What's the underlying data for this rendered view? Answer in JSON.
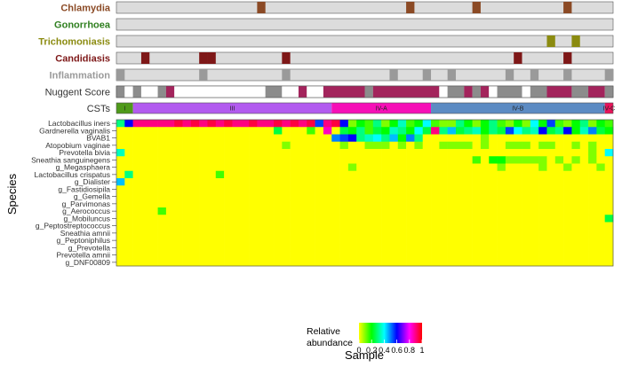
{
  "chart_data": {
    "type": "heatmap",
    "xlabel": "Sample",
    "ylabel": "Species",
    "n_samples": 60,
    "annotation_tracks": [
      {
        "name": "Chlamydia",
        "color": "#8B4A25",
        "positive": [
          17,
          35,
          43,
          54
        ]
      },
      {
        "name": "Gonorrhoea",
        "color": "#2F7F1F",
        "positive": []
      },
      {
        "name": "Trichomoniasis",
        "color": "#8B8B10",
        "positive": [
          52,
          55
        ]
      },
      {
        "name": "Candidiasis",
        "color": "#7E1818",
        "positive": [
          3,
          10,
          11,
          20,
          48,
          54
        ]
      },
      {
        "name": "Inflammation",
        "color": "#9A9A9A",
        "positive": [
          0,
          10,
          20,
          33,
          37,
          40,
          47,
          50,
          54,
          59
        ]
      },
      {
        "name": "Nuggent Score",
        "color": "#333333"
      }
    ],
    "nugent_colors": {
      "normal": "#FFFFFF",
      "intermediate": "#8C8C8C",
      "bv": "#A3245C"
    },
    "nugent_segments": [
      {
        "start": 0,
        "end": 1,
        "category": "intermediate"
      },
      {
        "start": 1,
        "end": 2,
        "category": "normal"
      },
      {
        "start": 2,
        "end": 3,
        "category": "intermediate"
      },
      {
        "start": 3,
        "end": 5,
        "category": "normal"
      },
      {
        "start": 5,
        "end": 6,
        "category": "intermediate"
      },
      {
        "start": 6,
        "end": 7,
        "category": "bv"
      },
      {
        "start": 7,
        "end": 18,
        "category": "normal"
      },
      {
        "start": 18,
        "end": 20,
        "category": "intermediate"
      },
      {
        "start": 20,
        "end": 22,
        "category": "normal"
      },
      {
        "start": 22,
        "end": 23,
        "category": "bv"
      },
      {
        "start": 23,
        "end": 25,
        "category": "normal"
      },
      {
        "start": 25,
        "end": 30,
        "category": "bv"
      },
      {
        "start": 30,
        "end": 31,
        "category": "intermediate"
      },
      {
        "start": 31,
        "end": 39,
        "category": "bv"
      },
      {
        "start": 39,
        "end": 40,
        "category": "normal"
      },
      {
        "start": 40,
        "end": 42,
        "category": "intermediate"
      },
      {
        "start": 42,
        "end": 43,
        "category": "bv"
      },
      {
        "start": 43,
        "end": 44,
        "category": "intermediate"
      },
      {
        "start": 44,
        "end": 45,
        "category": "bv"
      },
      {
        "start": 45,
        "end": 46,
        "category": "normal"
      },
      {
        "start": 46,
        "end": 49,
        "category": "intermediate"
      },
      {
        "start": 49,
        "end": 50,
        "category": "normal"
      },
      {
        "start": 50,
        "end": 52,
        "category": "intermediate"
      },
      {
        "start": 52,
        "end": 55,
        "category": "bv"
      },
      {
        "start": 55,
        "end": 57,
        "category": "intermediate"
      },
      {
        "start": 57,
        "end": 59,
        "category": "bv"
      },
      {
        "start": 59,
        "end": 60,
        "category": "intermediate"
      }
    ],
    "cst_track_label": "CSTs",
    "csts": [
      {
        "label": "I",
        "start": 0,
        "end": 2,
        "color": "#4F9A1A"
      },
      {
        "label": "III",
        "start": 2,
        "end": 26,
        "color": "#B25BEF"
      },
      {
        "label": "IV-A",
        "start": 26,
        "end": 38,
        "color": "#F60FB7"
      },
      {
        "label": "IV-B",
        "start": 38,
        "end": 59,
        "color": "#5C8BC3"
      },
      {
        "label": "IV-C",
        "start": 59,
        "end": 60,
        "color": "#E8135A"
      }
    ],
    "species": [
      "Lactobacillus iners",
      "Gardnerella vaginalis",
      "BVAB1",
      "Atopobium vaginae",
      "Prevotella bivia",
      "Sneathia sanguinegens",
      "g_Megasphaera",
      "Lactobacillus crispatus",
      "g_Dialister",
      "g_Fastidiosipila",
      "g_Gemella",
      "g_Parvimonas",
      "g_Aerococcus",
      "g_Mobiluncus",
      "g_Peptostreptococcus",
      "Sneathia amnii",
      "g_Peptoniphilus",
      "g_Prevotella",
      "Prevotella amnii",
      "g_DNF00809"
    ],
    "abundance": [
      [
        0.3,
        0.6,
        0.9,
        0.9,
        0.9,
        0.9,
        0.9,
        0.95,
        0.9,
        0.95,
        0.9,
        0.95,
        0.9,
        0.95,
        0.9,
        0.9,
        0.95,
        0.9,
        0.9,
        0.95,
        0.9,
        0.95,
        0.9,
        0.95,
        0.55,
        0.9,
        0.95,
        0.6,
        0.1,
        0.2,
        0.15,
        0.3,
        0.1,
        0.2,
        0.35,
        0.15,
        0.2,
        0.4,
        0.15,
        0.1,
        0.1,
        0.3,
        0.2,
        0.1,
        0.2,
        0.3,
        0.15,
        0.1,
        0.2,
        0.1,
        0.4,
        0.2,
        0.55,
        0.15,
        0.1,
        0.2,
        0.3,
        0.1,
        0.2,
        0.15
      ],
      [
        0,
        0,
        0,
        0,
        0,
        0,
        0,
        0,
        0,
        0,
        0,
        0,
        0,
        0,
        0,
        0,
        0,
        0,
        0,
        0.25,
        0,
        0,
        0,
        0.15,
        0,
        0.85,
        0,
        0.25,
        0.2,
        0.3,
        0.15,
        0.25,
        0.2,
        0.35,
        0.3,
        0.2,
        0.4,
        0.25,
        0.9,
        0.3,
        0.45,
        0.25,
        0.3,
        0.35,
        0.2,
        0.3,
        0.25,
        0.55,
        0.4,
        0.3,
        0.35,
        0.6,
        0.25,
        0.3,
        0.6,
        0.2,
        0.35,
        0.5,
        0.25,
        0.2
      ],
      [
        0,
        0,
        0,
        0,
        0,
        0,
        0,
        0,
        0,
        0,
        0,
        0,
        0,
        0,
        0,
        0,
        0,
        0,
        0,
        0,
        0,
        0,
        0,
        0,
        0,
        0,
        0.5,
        0.55,
        0.6,
        0.3,
        0.35,
        0.4,
        0.3,
        0.45,
        0.2,
        0.5,
        0.3,
        0,
        0,
        0,
        0,
        0,
        0,
        0,
        0.1,
        0,
        0,
        0,
        0,
        0,
        0,
        0,
        0,
        0,
        0,
        0,
        0,
        0,
        0,
        0
      ],
      [
        0,
        0,
        0,
        0,
        0,
        0,
        0,
        0,
        0,
        0,
        0,
        0,
        0,
        0,
        0,
        0,
        0,
        0,
        0,
        0,
        0.1,
        0,
        0,
        0,
        0,
        0,
        0,
        0.1,
        0,
        0,
        0.1,
        0.1,
        0.1,
        0,
        0.1,
        0,
        0.1,
        0,
        0,
        0.1,
        0.1,
        0.1,
        0.1,
        0,
        0.1,
        0,
        0,
        0.1,
        0.1,
        0.1,
        0,
        0.1,
        0.1,
        0,
        0,
        0.1,
        0,
        0.1,
        0,
        0
      ],
      [
        0.35,
        0,
        0,
        0,
        0,
        0,
        0,
        0,
        0,
        0,
        0,
        0,
        0,
        0,
        0,
        0,
        0,
        0,
        0,
        0,
        0,
        0,
        0,
        0,
        0,
        0,
        0,
        0,
        0,
        0,
        0,
        0,
        0,
        0,
        0,
        0,
        0,
        0,
        0,
        0,
        0,
        0,
        0,
        0,
        0,
        0,
        0,
        0,
        0,
        0,
        0,
        0,
        0,
        0,
        0,
        0,
        0,
        0.1,
        0,
        0.4
      ],
      [
        0,
        0,
        0,
        0,
        0,
        0,
        0,
        0,
        0,
        0,
        0,
        0,
        0,
        0,
        0,
        0,
        0,
        0,
        0,
        0,
        0,
        0,
        0,
        0,
        0,
        0,
        0,
        0,
        0,
        0,
        0,
        0,
        0,
        0,
        0,
        0,
        0,
        0,
        0,
        0,
        0,
        0,
        0,
        0.15,
        0,
        0.2,
        0.2,
        0.1,
        0.1,
        0.1,
        0.1,
        0.1,
        0,
        0.1,
        0,
        0.1,
        0,
        0.1,
        0,
        0
      ],
      [
        0,
        0,
        0,
        0,
        0,
        0,
        0,
        0,
        0,
        0,
        0,
        0,
        0,
        0,
        0,
        0,
        0,
        0,
        0,
        0,
        0,
        0,
        0,
        0,
        0,
        0,
        0,
        0,
        0.1,
        0,
        0,
        0,
        0,
        0,
        0,
        0,
        0,
        0,
        0,
        0,
        0,
        0,
        0,
        0,
        0,
        0,
        0.1,
        0,
        0,
        0,
        0,
        0.1,
        0,
        0,
        0.1,
        0,
        0,
        0,
        0.1,
        0
      ],
      [
        0,
        0.3,
        0,
        0,
        0,
        0,
        0,
        0,
        0,
        0,
        0,
        0,
        0.15,
        0,
        0,
        0,
        0,
        0,
        0,
        0,
        0,
        0,
        0,
        0,
        0,
        0,
        0,
        0,
        0,
        0,
        0,
        0,
        0,
        0,
        0,
        0,
        0,
        0,
        0,
        0,
        0,
        0,
        0,
        0,
        0,
        0,
        0,
        0,
        0,
        0,
        0,
        0,
        0,
        0,
        0,
        0,
        0,
        0,
        0,
        0
      ],
      [
        0.45,
        0,
        0,
        0,
        0,
        0,
        0,
        0,
        0,
        0,
        0,
        0,
        0,
        0,
        0,
        0,
        0,
        0,
        0,
        0,
        0,
        0,
        0,
        0,
        0,
        0,
        0,
        0,
        0,
        0,
        0,
        0,
        0,
        0,
        0,
        0,
        0,
        0,
        0,
        0,
        0,
        0,
        0,
        0,
        0,
        0,
        0,
        0,
        0,
        0,
        0,
        0,
        0,
        0,
        0,
        0,
        0,
        0,
        0,
        0
      ],
      [
        0,
        0,
        0,
        0,
        0,
        0,
        0,
        0,
        0,
        0,
        0,
        0,
        0,
        0,
        0,
        0,
        0,
        0,
        0,
        0,
        0,
        0,
        0,
        0,
        0,
        0,
        0,
        0,
        0,
        0,
        0,
        0,
        0,
        0,
        0,
        0,
        0,
        0,
        0,
        0,
        0,
        0,
        0,
        0,
        0,
        0,
        0,
        0,
        0,
        0,
        0,
        0,
        0,
        0,
        0,
        0,
        0,
        0,
        0,
        0
      ],
      [
        0,
        0,
        0,
        0,
        0,
        0,
        0,
        0,
        0,
        0,
        0,
        0,
        0,
        0,
        0,
        0,
        0,
        0,
        0,
        0,
        0,
        0,
        0,
        0,
        0,
        0,
        0,
        0,
        0,
        0,
        0,
        0,
        0,
        0,
        0,
        0,
        0,
        0,
        0,
        0,
        0,
        0,
        0,
        0,
        0,
        0,
        0,
        0,
        0,
        0,
        0,
        0,
        0,
        0,
        0,
        0,
        0,
        0,
        0,
        0
      ],
      [
        0,
        0,
        0,
        0,
        0,
        0,
        0,
        0,
        0,
        0,
        0,
        0,
        0,
        0,
        0,
        0,
        0,
        0,
        0,
        0,
        0,
        0,
        0,
        0,
        0,
        0,
        0,
        0,
        0,
        0,
        0,
        0,
        0,
        0,
        0,
        0,
        0,
        0,
        0,
        0,
        0,
        0,
        0,
        0,
        0,
        0,
        0,
        0,
        0,
        0,
        0,
        0,
        0,
        0,
        0,
        0,
        0,
        0,
        0,
        0
      ],
      [
        0,
        0,
        0,
        0,
        0,
        0.15,
        0,
        0,
        0,
        0,
        0,
        0,
        0,
        0,
        0,
        0,
        0,
        0,
        0,
        0,
        0,
        0,
        0,
        0,
        0,
        0,
        0,
        0,
        0,
        0,
        0,
        0,
        0,
        0,
        0,
        0,
        0,
        0,
        0,
        0,
        0,
        0,
        0,
        0,
        0,
        0,
        0,
        0,
        0,
        0,
        0,
        0,
        0,
        0,
        0,
        0,
        0,
        0,
        0,
        0
      ],
      [
        0,
        0,
        0,
        0,
        0,
        0,
        0,
        0,
        0,
        0,
        0,
        0,
        0,
        0,
        0,
        0,
        0,
        0,
        0,
        0,
        0,
        0,
        0,
        0,
        0,
        0,
        0,
        0,
        0,
        0,
        0,
        0,
        0,
        0,
        0,
        0,
        0,
        0,
        0,
        0,
        0,
        0,
        0,
        0,
        0,
        0,
        0,
        0,
        0,
        0,
        0,
        0,
        0,
        0,
        0,
        0,
        0,
        0,
        0,
        0.25
      ],
      [
        0,
        0,
        0,
        0,
        0,
        0,
        0,
        0,
        0,
        0,
        0,
        0,
        0,
        0,
        0,
        0,
        0,
        0,
        0,
        0,
        0,
        0,
        0,
        0,
        0,
        0,
        0,
        0,
        0,
        0,
        0,
        0,
        0,
        0,
        0,
        0,
        0,
        0,
        0,
        0,
        0,
        0,
        0,
        0,
        0,
        0,
        0,
        0,
        0,
        0,
        0,
        0,
        0,
        0,
        0,
        0,
        0,
        0,
        0,
        0
      ],
      [
        0,
        0,
        0,
        0,
        0,
        0,
        0,
        0,
        0,
        0,
        0,
        0,
        0,
        0,
        0,
        0,
        0,
        0,
        0,
        0,
        0,
        0,
        0,
        0,
        0,
        0,
        0,
        0,
        0,
        0,
        0,
        0,
        0,
        0,
        0,
        0,
        0,
        0,
        0,
        0,
        0,
        0,
        0,
        0,
        0,
        0,
        0,
        0,
        0,
        0,
        0,
        0,
        0,
        0,
        0,
        0,
        0,
        0,
        0,
        0
      ],
      [
        0,
        0,
        0,
        0,
        0,
        0,
        0,
        0,
        0,
        0,
        0,
        0,
        0,
        0,
        0,
        0,
        0,
        0,
        0,
        0,
        0,
        0,
        0,
        0,
        0,
        0,
        0,
        0,
        0,
        0,
        0,
        0,
        0,
        0,
        0,
        0,
        0,
        0,
        0,
        0,
        0,
        0,
        0,
        0,
        0,
        0,
        0,
        0,
        0,
        0,
        0,
        0,
        0,
        0,
        0,
        0,
        0,
        0,
        0,
        0
      ],
      [
        0,
        0,
        0,
        0,
        0,
        0,
        0,
        0,
        0,
        0,
        0,
        0,
        0,
        0,
        0,
        0,
        0,
        0,
        0,
        0,
        0,
        0,
        0,
        0,
        0,
        0,
        0,
        0,
        0,
        0,
        0,
        0,
        0,
        0,
        0,
        0,
        0,
        0,
        0,
        0,
        0,
        0,
        0,
        0,
        0,
        0,
        0,
        0,
        0,
        0,
        0,
        0,
        0,
        0,
        0,
        0,
        0,
        0,
        0,
        0
      ],
      [
        0,
        0,
        0,
        0,
        0,
        0,
        0,
        0,
        0,
        0,
        0,
        0,
        0,
        0,
        0,
        0,
        0,
        0,
        0,
        0,
        0,
        0,
        0,
        0,
        0,
        0,
        0,
        0,
        0,
        0,
        0,
        0,
        0,
        0,
        0,
        0,
        0,
        0,
        0,
        0,
        0,
        0,
        0,
        0,
        0,
        0,
        0,
        0,
        0,
        0,
        0,
        0,
        0,
        0,
        0,
        0,
        0,
        0,
        0,
        0
      ],
      [
        0,
        0,
        0,
        0,
        0,
        0,
        0,
        0,
        0,
        0,
        0,
        0,
        0,
        0,
        0,
        0,
        0,
        0,
        0,
        0,
        0,
        0,
        0,
        0,
        0,
        0,
        0,
        0,
        0,
        0,
        0,
        0,
        0,
        0,
        0,
        0,
        0,
        0,
        0,
        0,
        0,
        0,
        0,
        0,
        0,
        0,
        0,
        0,
        0,
        0,
        0,
        0,
        0,
        0,
        0,
        0,
        0,
        0,
        0,
        0
      ]
    ],
    "track_bg_color": "#DCDCDC",
    "legend": {
      "title_line1": "Relative",
      "title_line2": "abundance",
      "ticks": [
        "0",
        "0.2",
        "0.4",
        "0.6",
        "0.8",
        "1"
      ],
      "tick_values": [
        0,
        0.2,
        0.4,
        0.6,
        0.8,
        1
      ],
      "placement": "bottom"
    },
    "colormap": [
      "#FFFF00",
      "#00FF00",
      "#00FFFF",
      "#0000FF",
      "#FF00FF",
      "#FF0000"
    ]
  }
}
